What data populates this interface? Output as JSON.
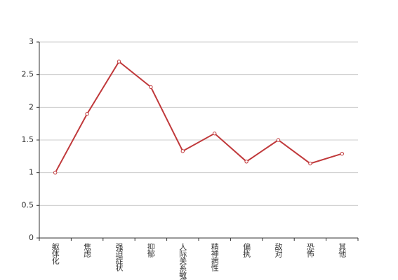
{
  "chart_data": {
    "type": "line",
    "categories": [
      "躯体化",
      "焦虑",
      "强迫症状",
      "抑郁",
      "人际关系敏感",
      "精神病性",
      "偏执",
      "敌对",
      "恐怖",
      "其他"
    ],
    "series": [
      {
        "color": "#c0393b",
        "values": [
          1.0,
          1.9,
          2.7,
          2.31,
          1.33,
          1.6,
          1.17,
          1.5,
          1.14,
          1.29
        ]
      }
    ],
    "ylim": [
      0,
      3
    ],
    "yticks": [
      0,
      0.5,
      1,
      1.5,
      2,
      2.5,
      3
    ],
    "grid": true
  }
}
